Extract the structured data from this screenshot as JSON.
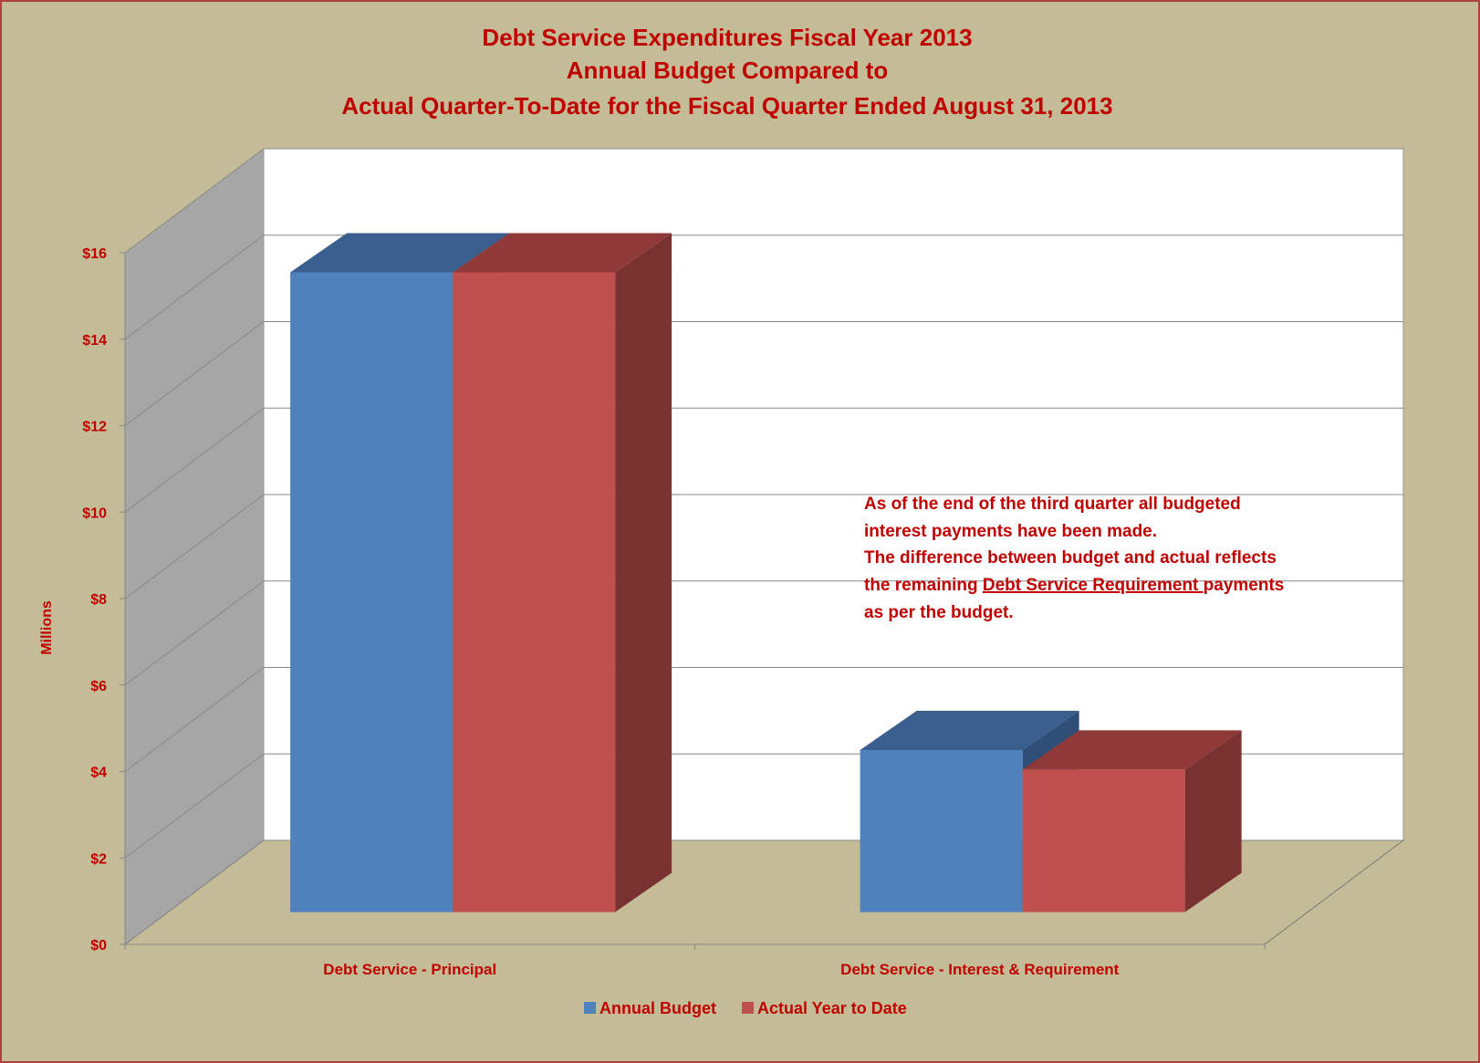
{
  "chart_data": {
    "type": "bar3d",
    "title": [
      "Debt Service Expenditures Fiscal Year 2013",
      "Annual Budget Compared to",
      "Actual Quarter-To-Date for the Fiscal Quarter Ended August 31, 2013"
    ],
    "y_label": "Millions",
    "categories": [
      "Debt Service - Principal",
      "Debt Service - Interest & Requirement"
    ],
    "series": [
      {
        "name": "Annual Budget",
        "color": "#4f81bd",
        "top_color": "#3a5f8e",
        "side_color": "#2f4f78",
        "values": [
          14.8,
          3.75
        ]
      },
      {
        "name": "Actual Year to Date",
        "color": "#c0504d",
        "top_color": "#8f3a38",
        "side_color": "#7a3230",
        "values": [
          14.8,
          3.3
        ]
      }
    ],
    "ylim": [
      0,
      16
    ],
    "yticks": [
      {
        "value": 0,
        "label": "$0"
      },
      {
        "value": 2,
        "label": "$2"
      },
      {
        "value": 4,
        "label": "$4"
      },
      {
        "value": 6,
        "label": "$6"
      },
      {
        "value": 8,
        "label": "$8"
      },
      {
        "value": 10,
        "label": "$10"
      },
      {
        "value": 12,
        "label": "$12"
      },
      {
        "value": 14,
        "label": "$14"
      },
      {
        "value": 16,
        "label": "$16"
      }
    ],
    "grid": true,
    "legend": "bottom",
    "annotation": [
      [
        "As of the end of the third quarter all budgeted"
      ],
      [
        "interest payments have been made."
      ],
      [
        "The difference between budget and actual reflects"
      ],
      [
        "the remaining ",
        "Debt Service Requirement ",
        "payments"
      ],
      [
        "as per the budget."
      ]
    ]
  }
}
